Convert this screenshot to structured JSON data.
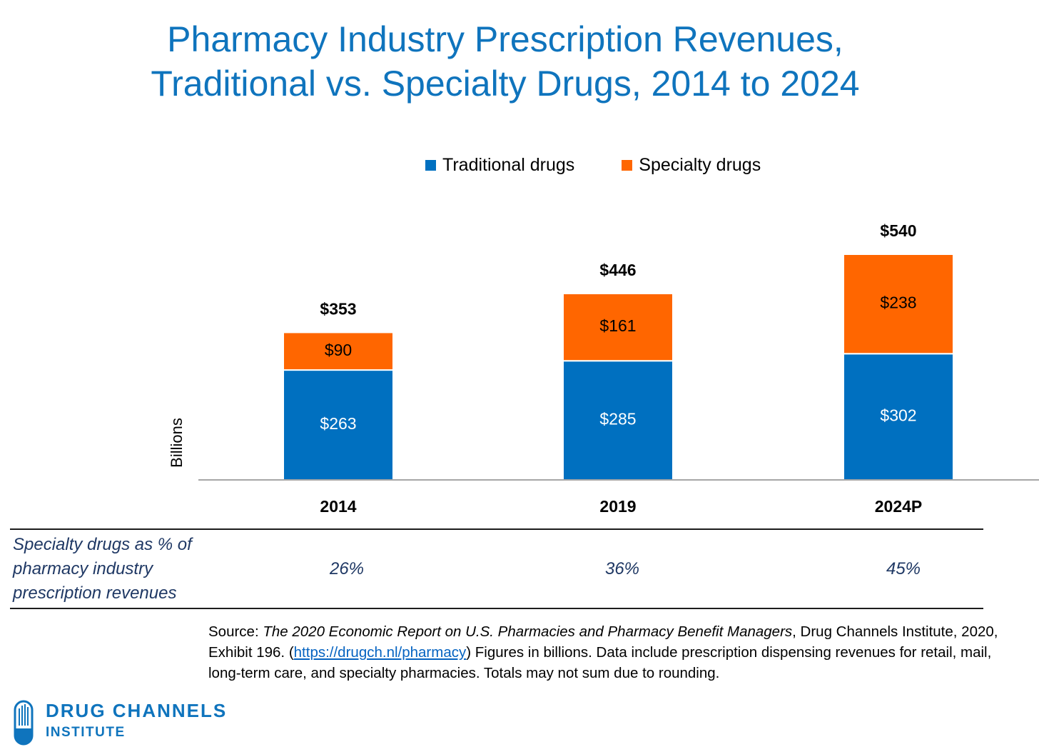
{
  "title": {
    "line1": "Pharmacy Industry Prescription Revenues,",
    "line2": "Traditional vs. Specialty Drugs, 2014 to 2024"
  },
  "colors": {
    "traditional": "#0070c0",
    "specialty": "#ff6600",
    "title": "#0f74bd"
  },
  "chart_data": {
    "type": "bar",
    "stacked": true,
    "categories": [
      "2014",
      "2019",
      "2024P"
    ],
    "series": [
      {
        "name": "Traditional drugs",
        "values": [
          263,
          285,
          302
        ],
        "labels": [
          "$263",
          "$285",
          "$302"
        ]
      },
      {
        "name": "Specialty drugs",
        "values": [
          90,
          161,
          238
        ],
        "labels": [
          "$90",
          "$161",
          "$238"
        ]
      }
    ],
    "totals": [
      353,
      446,
      540
    ],
    "total_labels": [
      "$353",
      "$446",
      "$540"
    ],
    "ylabel": "Billions",
    "xlabel": "",
    "ylim": [
      0,
      540
    ],
    "legend": "top",
    "grid": false
  },
  "table": {
    "row_label": "Specialty drugs as % of pharmacy industry prescription revenues",
    "values": [
      "26%",
      "36%",
      "45%"
    ]
  },
  "source": {
    "prefix": "Source: ",
    "report": "The 2020 Economic Report on U.S. Pharmacies and Pharmacy Benefit Managers",
    "mid": ", Drug Channels Institute, 2020, Exhibit 196. (",
    "link": "https://drugch.nl/pharmacy",
    "suffix": ") Figures in billions. Data include prescription dispensing revenues for retail, mail, long-term care, and specialty pharmacies. Totals may not sum due to rounding."
  },
  "logo": {
    "line1": "DRUG CHANNELS",
    "line2": "INSTITUTE",
    "icon": "capsule-icon"
  }
}
